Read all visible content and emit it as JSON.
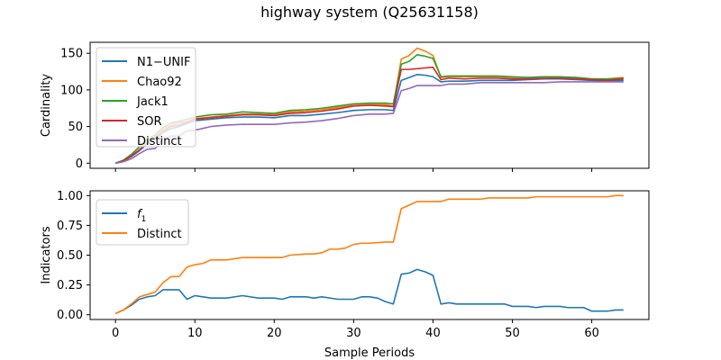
{
  "title": "highway system (Q25631158)",
  "chart_data": [
    {
      "type": "line",
      "xlabel": "",
      "ylabel": "Cardinality",
      "xlim": [
        -3.2,
        67.2
      ],
      "ylim": [
        -7,
        165
      ],
      "xticks": [
        0,
        10,
        20,
        30,
        40,
        50,
        60
      ],
      "yticks": [
        0,
        50,
        100,
        150
      ],
      "ytick_labels": [
        "0",
        "50",
        "100",
        "150"
      ],
      "show_xtick_labels": false,
      "legend": "upper left",
      "series": [
        {
          "name": "N1−UNIF",
          "color": "#1f77b4",
          "x": [
            0,
            1,
            2,
            3,
            4,
            5,
            6,
            7,
            8,
            9,
            10,
            12,
            14,
            16,
            18,
            20,
            22,
            24,
            26,
            28,
            30,
            32,
            34,
            35,
            36,
            37,
            38,
            39,
            40,
            41,
            42,
            44,
            46,
            48,
            50,
            52,
            54,
            56,
            58,
            60,
            62,
            64
          ],
          "y": [
            0,
            3,
            9,
            17,
            26,
            33,
            42,
            47,
            50,
            54,
            58,
            60,
            62,
            63,
            63,
            62,
            65,
            65,
            67,
            69,
            72,
            73,
            73,
            72,
            113,
            117,
            121,
            120,
            118,
            111,
            112,
            112,
            113,
            113,
            113,
            114,
            115,
            115,
            114,
            113,
            112,
            113
          ]
        },
        {
          "name": "Chao92",
          "color": "#ff7f0e",
          "x": [
            0,
            1,
            2,
            3,
            4,
            5,
            6,
            7,
            8,
            9,
            10,
            12,
            14,
            16,
            18,
            20,
            22,
            24,
            26,
            28,
            30,
            32,
            34,
            35,
            36,
            37,
            38,
            39,
            40,
            41,
            42,
            44,
            46,
            48,
            50,
            52,
            54,
            56,
            58,
            60,
            62,
            64
          ],
          "y": [
            0,
            4,
            12,
            22,
            31,
            38,
            47,
            52,
            55,
            57,
            61,
            63,
            65,
            67,
            67,
            66,
            70,
            71,
            73,
            76,
            79,
            80,
            80,
            78,
            142,
            147,
            157,
            153,
            147,
            117,
            118,
            118,
            118,
            118,
            117,
            117,
            118,
            117,
            117,
            115,
            115,
            117
          ]
        },
        {
          "name": "Jack1",
          "color": "#2ca02c",
          "x": [
            0,
            1,
            2,
            3,
            4,
            5,
            6,
            7,
            8,
            9,
            10,
            12,
            14,
            16,
            18,
            20,
            22,
            24,
            26,
            28,
            30,
            32,
            34,
            35,
            36,
            37,
            38,
            39,
            40,
            41,
            42,
            44,
            46,
            48,
            50,
            52,
            54,
            56,
            58,
            60,
            62,
            64
          ],
          "y": [
            0,
            4,
            12,
            22,
            32,
            39,
            49,
            55,
            57,
            60,
            63,
            66,
            67,
            70,
            69,
            68,
            72,
            73,
            75,
            78,
            81,
            82,
            82,
            81,
            135,
            139,
            148,
            146,
            143,
            118,
            119,
            119,
            119,
            119,
            118,
            117,
            118,
            118,
            117,
            115,
            115,
            116
          ]
        },
        {
          "name": "SOR",
          "color": "#d62728",
          "x": [
            0,
            1,
            2,
            3,
            4,
            5,
            6,
            7,
            8,
            9,
            10,
            12,
            14,
            16,
            18,
            20,
            22,
            24,
            26,
            28,
            30,
            32,
            34,
            35,
            36,
            37,
            38,
            39,
            40,
            41,
            42,
            44,
            46,
            48,
            50,
            52,
            54,
            56,
            58,
            60,
            62,
            64
          ],
          "y": [
            0,
            3,
            10,
            18,
            28,
            35,
            44,
            50,
            52,
            56,
            60,
            62,
            64,
            66,
            66,
            65,
            68,
            69,
            71,
            74,
            78,
            79,
            78,
            77,
            128,
            128,
            129,
            130,
            131,
            114,
            116,
            115,
            116,
            116,
            115,
            115,
            116,
            116,
            115,
            114,
            113,
            115
          ]
        },
        {
          "name": "Distinct",
          "color": "#9467bd",
          "x": [
            0,
            1,
            2,
            3,
            4,
            5,
            6,
            7,
            8,
            9,
            10,
            12,
            14,
            16,
            18,
            20,
            22,
            24,
            26,
            28,
            30,
            32,
            34,
            35,
            36,
            37,
            38,
            39,
            40,
            41,
            42,
            44,
            46,
            48,
            50,
            52,
            54,
            56,
            58,
            60,
            62,
            64
          ],
          "y": [
            0,
            2,
            6,
            13,
            19,
            20,
            33,
            37,
            37,
            44,
            45,
            50,
            52,
            53,
            53,
            53,
            55,
            56,
            58,
            61,
            65,
            67,
            67,
            68,
            99,
            102,
            106,
            106,
            106,
            106,
            108,
            108,
            110,
            110,
            110,
            110,
            110,
            111,
            111,
            111,
            111,
            111
          ]
        }
      ]
    },
    {
      "type": "line",
      "xlabel": "Sample Periods",
      "ylabel": "Indicators",
      "xlim": [
        -3.2,
        67.2
      ],
      "ylim": [
        -0.04,
        1.04
      ],
      "xticks": [
        0,
        10,
        20,
        30,
        40,
        50,
        60
      ],
      "xtick_labels": [
        "0",
        "10",
        "20",
        "30",
        "40",
        "50",
        "60"
      ],
      "yticks": [
        0,
        0.25,
        0.5,
        0.75,
        1.0
      ],
      "ytick_labels": [
        "0.00",
        "0.25",
        "0.50",
        "0.75",
        "1.00"
      ],
      "show_xtick_labels": true,
      "legend": "upper left",
      "series": [
        {
          "name": "f1",
          "name_base": "f",
          "name_sub": "1",
          "color": "#1f77b4",
          "x": [
            0,
            1,
            2,
            3,
            4,
            5,
            6,
            7,
            8,
            9,
            10,
            11,
            12,
            14,
            16,
            18,
            20,
            21,
            22,
            24,
            25,
            26,
            28,
            30,
            31,
            32,
            33,
            34,
            35,
            36,
            37,
            38,
            39,
            40,
            41,
            42,
            43,
            44,
            46,
            48,
            49,
            50,
            52,
            53,
            54,
            56,
            57,
            58,
            59,
            60,
            62,
            63,
            64
          ],
          "y": [
            0.01,
            0.04,
            0.08,
            0.13,
            0.15,
            0.16,
            0.21,
            0.21,
            0.21,
            0.13,
            0.16,
            0.15,
            0.14,
            0.14,
            0.16,
            0.14,
            0.14,
            0.13,
            0.15,
            0.15,
            0.14,
            0.15,
            0.13,
            0.13,
            0.15,
            0.15,
            0.14,
            0.11,
            0.09,
            0.34,
            0.35,
            0.38,
            0.36,
            0.33,
            0.09,
            0.1,
            0.09,
            0.09,
            0.09,
            0.09,
            0.09,
            0.07,
            0.07,
            0.06,
            0.07,
            0.07,
            0.06,
            0.06,
            0.06,
            0.03,
            0.03,
            0.04,
            0.04
          ]
        },
        {
          "name": "Distinct",
          "color": "#ff7f0e",
          "x": [
            0,
            1,
            2,
            3,
            4,
            5,
            6,
            7,
            8,
            9,
            10,
            11,
            12,
            14,
            16,
            18,
            20,
            21,
            22,
            24,
            25,
            26,
            27,
            28,
            29,
            30,
            31,
            32,
            34,
            35,
            36,
            37,
            38,
            39,
            40,
            41,
            42,
            44,
            46,
            47,
            48,
            50,
            52,
            53,
            54,
            56,
            58,
            60,
            62,
            63,
            64
          ],
          "y": [
            0.01,
            0.04,
            0.09,
            0.15,
            0.17,
            0.19,
            0.27,
            0.32,
            0.32,
            0.4,
            0.42,
            0.43,
            0.46,
            0.46,
            0.48,
            0.48,
            0.48,
            0.48,
            0.5,
            0.51,
            0.51,
            0.52,
            0.55,
            0.55,
            0.56,
            0.59,
            0.6,
            0.6,
            0.61,
            0.61,
            0.89,
            0.92,
            0.95,
            0.95,
            0.95,
            0.95,
            0.97,
            0.97,
            0.97,
            0.98,
            0.98,
            0.98,
            0.98,
            0.99,
            0.99,
            0.99,
            0.99,
            0.99,
            0.99,
            1.0,
            1.0
          ]
        }
      ]
    }
  ]
}
